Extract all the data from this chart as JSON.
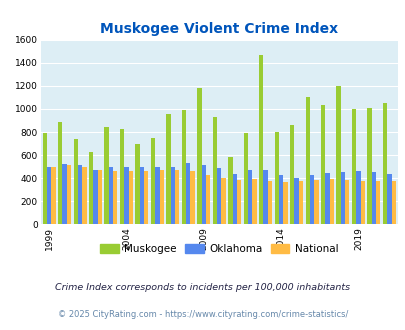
{
  "title": "Muskogee Violent Crime Index",
  "years": [
    1999,
    2000,
    2001,
    2002,
    2003,
    2004,
    2005,
    2006,
    2007,
    2008,
    2009,
    2010,
    2011,
    2012,
    2013,
    2014,
    2015,
    2016,
    2017,
    2018,
    2019,
    2020,
    2021
  ],
  "muskogee": [
    790,
    890,
    740,
    630,
    845,
    830,
    700,
    750,
    960,
    990,
    1180,
    930,
    580,
    790,
    1470,
    800,
    860,
    1100,
    1030,
    1200,
    1000,
    1005,
    1050
  ],
  "oklahoma": [
    500,
    520,
    510,
    470,
    500,
    500,
    500,
    500,
    500,
    530,
    510,
    490,
    440,
    470,
    475,
    430,
    405,
    430,
    445,
    450,
    460,
    455,
    440
  ],
  "national": [
    500,
    510,
    500,
    470,
    465,
    460,
    465,
    475,
    475,
    460,
    430,
    404,
    387,
    390,
    380,
    365,
    373,
    387,
    395,
    385,
    380,
    375,
    380
  ],
  "muskogee_color": "#99cc33",
  "oklahoma_color": "#5588ee",
  "national_color": "#ffbb44",
  "plot_bg_color": "#ddeef5",
  "title_color": "#0055bb",
  "tick_labels": [
    "1999",
    "2004",
    "2009",
    "2014",
    "2019"
  ],
  "tick_positions": [
    0,
    5,
    10,
    15,
    20
  ],
  "ylim": [
    0,
    1600
  ],
  "yticks": [
    0,
    200,
    400,
    600,
    800,
    1000,
    1200,
    1400,
    1600
  ],
  "footnote1": "Crime Index corresponds to incidents per 100,000 inhabitants",
  "footnote2": "© 2025 CityRating.com - https://www.cityrating.com/crime-statistics/",
  "footnote1_color": "#222244",
  "footnote2_color": "#6688aa"
}
